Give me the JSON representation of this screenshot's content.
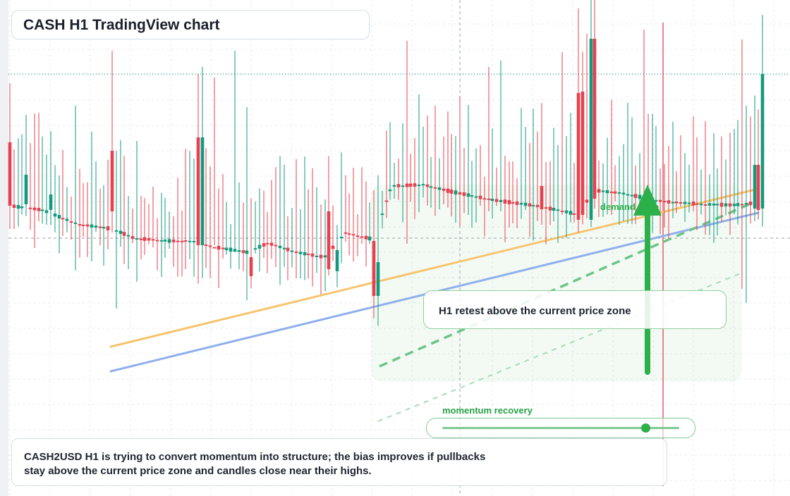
{
  "title": "CASH H1 TradingView chart",
  "colors": {
    "up": "#139a7e",
    "down": "#e8404f",
    "grid": "#e6e9ee",
    "orange_trend": "#f6c46d",
    "blue_trend": "#8fb0ec",
    "green_accent": "#2bb04a",
    "last_price_line": "#1f9e8c"
  },
  "annotations": {
    "zone_label": "demand zone",
    "callout": "H1 retest above the current price zone",
    "momentum_label": "momentum recovery",
    "momentum_level": 0.86,
    "arrow_icon": "up-arrow-icon"
  },
  "summary": {
    "line1": "CASH2USD H1 is trying to convert momentum into structure; the bias improves if pullbacks",
    "line2": "stay above the current price zone and candles close near their highs."
  },
  "chart_data": {
    "type": "candlestick",
    "title": "CASH H1 TradingView chart",
    "y_domain": [
      0,
      100
    ],
    "x_domain": [
      0,
      100
    ],
    "candles": [
      [
        -0.5,
        48.8,
        48.9,
        48.5,
        52.2
      ],
      [
        0.8,
        48.6,
        48.7,
        48.5,
        49.4
      ],
      [
        2.0,
        48.8,
        48.6,
        48.5,
        52.4
      ],
      [
        2.8,
        48.6,
        48.7,
        48.5,
        52.6
      ],
      [
        3.2,
        48.7,
        48.8,
        48.7,
        49.2
      ],
      [
        4.0,
        48.5,
        48.6,
        48.4,
        51.7
      ],
      [
        4.5,
        49.2,
        49.4,
        49.0,
        52.2
      ],
      [
        5.3,
        49.6,
        49.7,
        49.4,
        52.5
      ],
      [
        5.8,
        49.7,
        49.8,
        49.4,
        51.8
      ],
      [
        6.3,
        49.8,
        49.9,
        49.4,
        52.3
      ],
      [
        6.9,
        50.1,
        50.2,
        49.9,
        53.0
      ],
      [
        7.4,
        50.3,
        50.4,
        50.1,
        52.9
      ],
      [
        8.0,
        50.4,
        50.5,
        50.2,
        52.9
      ],
      [
        8.5,
        50.7,
        50.8,
        50.4,
        53.0
      ],
      [
        9.0,
        50.8,
        50.9,
        50.6,
        53.2
      ],
      [
        9.5,
        51.1,
        51.2,
        50.9,
        53.2
      ],
      [
        10.1,
        51.4,
        51.5,
        51.2,
        53.6
      ],
      [
        10.7,
        51.7,
        51.8,
        51.5,
        53.8
      ],
      [
        11.2,
        52.0,
        52.1,
        51.8,
        54.2
      ],
      [
        11.8,
        52.1,
        52.2,
        51.9,
        54.2
      ],
      [
        12.4,
        52.2,
        52.3,
        51.8,
        54.6
      ],
      [
        12.9,
        52.3,
        52.4,
        52.0,
        54.9
      ],
      [
        13.4,
        52.5,
        52.6,
        52.3,
        55.0
      ],
      [
        14.0,
        52.3,
        52.4,
        51.9,
        55.3
      ],
      [
        14.5,
        52.9,
        53.0,
        52.7,
        55.6
      ],
      [
        15.1,
        53.4,
        53.5,
        53.1,
        55.9
      ],
      [
        15.6,
        53.9,
        54.0,
        53.6,
        56.3
      ],
      [
        16.2,
        53.6,
        53.7,
        53.0,
        56.6
      ],
      [
        16.6,
        53.9,
        54.0,
        53.5,
        56.7
      ],
      [
        17.2,
        53.2,
        53.3,
        52.9,
        57.1
      ],
      [
        17.7,
        53.1,
        53.2,
        52.8,
        57.2
      ],
      [
        18.2,
        52.9,
        53.0,
        52.7,
        57.5
      ],
      [
        18.8,
        52.8,
        52.9,
        52.6,
        57.7
      ],
      [
        19.4,
        52.6,
        52.7,
        52.4,
        57.8
      ],
      [
        19.9,
        52.2,
        52.3,
        51.9,
        58.2
      ],
      [
        20.4,
        51.9,
        52.0,
        51.7,
        58.5
      ],
      [
        21.0,
        51.9,
        52.0,
        51.7,
        58.5
      ]
    ]
  }
}
